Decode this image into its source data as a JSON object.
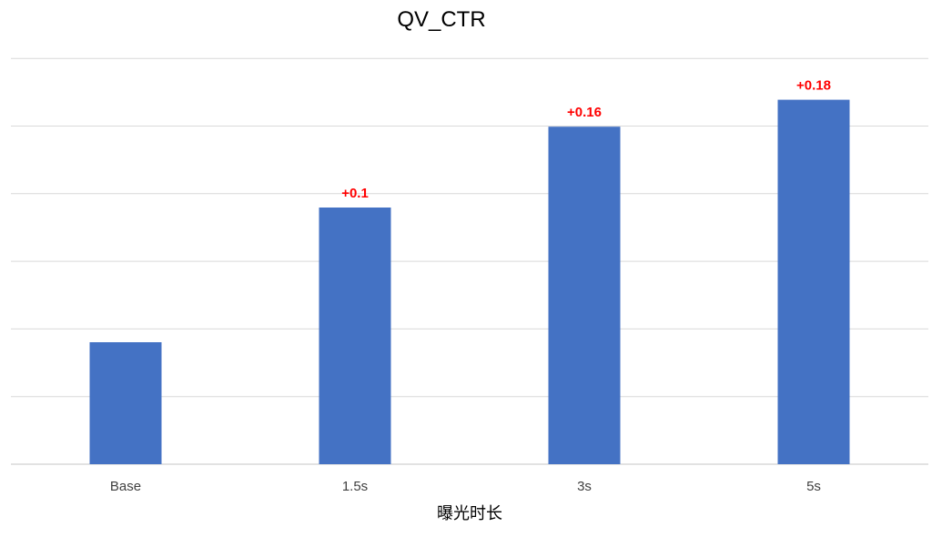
{
  "chart_data": {
    "type": "bar",
    "title": "QV_CTR",
    "xlabel": "曝光时长",
    "ylabel": "",
    "categories": [
      "Base",
      "1.5s",
      "3s",
      "5s"
    ],
    "values": [
      0.0,
      0.1,
      0.16,
      0.18
    ],
    "data_labels": [
      "",
      "+0.1",
      "+0.16",
      "+0.18"
    ],
    "grid": true,
    "legend": "none",
    "colors": {
      "bar": "#4472C4",
      "data_label": "#FF0000",
      "grid": "#D9D9D9"
    }
  }
}
